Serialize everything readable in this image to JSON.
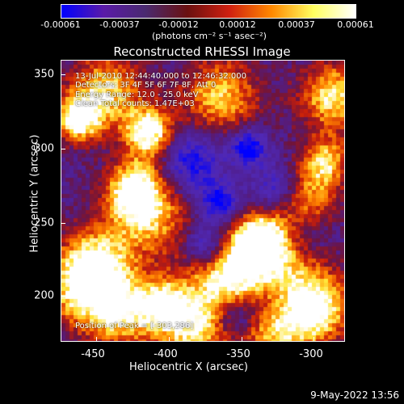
{
  "colorbar": {
    "ticks": [
      "-0.00061",
      "-0.00037",
      "-0.00012",
      "0.00012",
      "0.00037",
      "0.00061"
    ],
    "unit_label": "(photons cm⁻² s⁻¹ asec⁻²)",
    "colors": [
      "#0000ff",
      "#5a1aa8",
      "#4a2a70",
      "#6a1010",
      "#d02010",
      "#ff8800",
      "#ffff60",
      "#ffffff"
    ]
  },
  "title": "Reconstructed RHESSI Image",
  "info": {
    "time_range": "13-Jul-2010 12:44:40.000 to 12:46:32.000",
    "detectors": "Detectors: 3F 4F 5F 6F 7F 8F, Att 0",
    "energy": "Energy Range: 12.0 - 25.0 keV",
    "clean": "Clean     Total counts: 1.47E+03",
    "peak": "Position of Peak = [-303,286]"
  },
  "axes": {
    "xlabel": "Heliocentric X (arcsec)",
    "ylabel": "Heliocentric Y (arcsec)",
    "xticks": [
      "-450",
      "-400",
      "-350",
      "-300"
    ],
    "yticks": [
      "200",
      "250",
      "300",
      "350"
    ],
    "xlim": [
      -467,
      -272
    ],
    "ylim": [
      165,
      360
    ]
  },
  "timestamp": "9-May-2022 13:56"
}
